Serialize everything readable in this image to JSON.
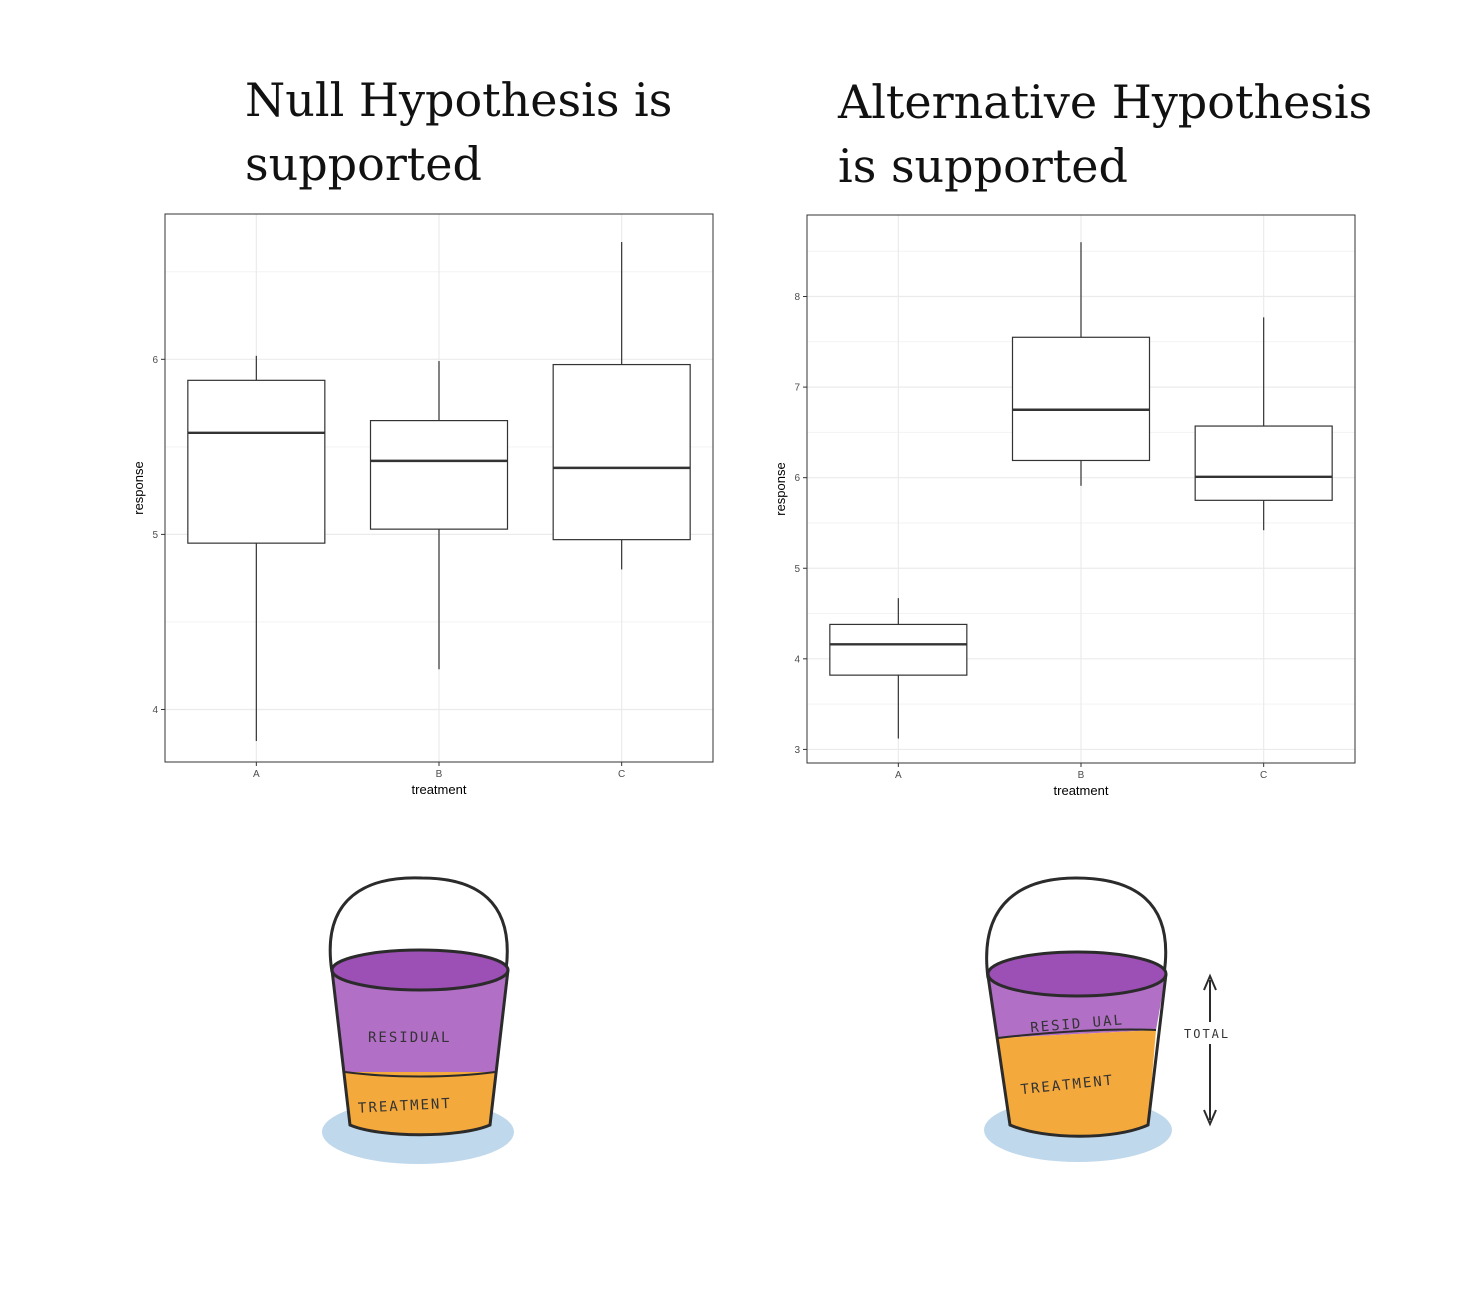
{
  "titles": {
    "left": [
      "Null Hypothesis is",
      "supported"
    ],
    "right": [
      "Alternative Hypothesis",
      "is supported"
    ]
  },
  "chart_data": [
    {
      "type": "box",
      "xlabel": "treatment",
      "ylabel": "response",
      "categories": [
        "A",
        "B",
        "C"
      ],
      "ylim": [
        3.7,
        6.83
      ],
      "yticks": [
        4,
        5,
        6
      ],
      "grid": true,
      "boxes": [
        {
          "category": "A",
          "min": 3.82,
          "q1": 4.95,
          "median": 5.58,
          "q3": 5.88,
          "max": 6.02
        },
        {
          "category": "B",
          "min": 4.23,
          "q1": 5.03,
          "median": 5.42,
          "q3": 5.65,
          "max": 5.99
        },
        {
          "category": "C",
          "min": 4.8,
          "q1": 4.97,
          "median": 5.38,
          "q3": 5.97,
          "max": 6.67
        }
      ]
    },
    {
      "type": "box",
      "xlabel": "treatment",
      "ylabel": "response",
      "categories": [
        "A",
        "B",
        "C"
      ],
      "ylim": [
        2.85,
        8.9
      ],
      "yticks": [
        3,
        4,
        5,
        6,
        7,
        8
      ],
      "grid": true,
      "boxes": [
        {
          "category": "A",
          "min": 3.12,
          "q1": 3.82,
          "median": 4.16,
          "q3": 4.38,
          "max": 4.67
        },
        {
          "category": "B",
          "min": 5.91,
          "q1": 6.19,
          "median": 6.75,
          "q3": 7.55,
          "max": 8.6
        },
        {
          "category": "C",
          "min": 5.42,
          "q1": 5.75,
          "median": 6.01,
          "q3": 6.57,
          "max": 7.77
        }
      ]
    }
  ],
  "buckets": {
    "left": {
      "residual_label": "RESIDUAL",
      "treatment_label": "TREATMENT"
    },
    "right": {
      "residual_label": "RESID UAL",
      "treatment_label": "TREATMENT",
      "total_label": "TOTAL"
    }
  },
  "colors": {
    "residual": "#b26fc6",
    "residual_top": "#9c4fb5",
    "treatment": "#f4a93c",
    "water": "#a9cbe6",
    "outline": "#2b2b2b",
    "grid": "#ebebeb",
    "panel_border": "#333333"
  }
}
